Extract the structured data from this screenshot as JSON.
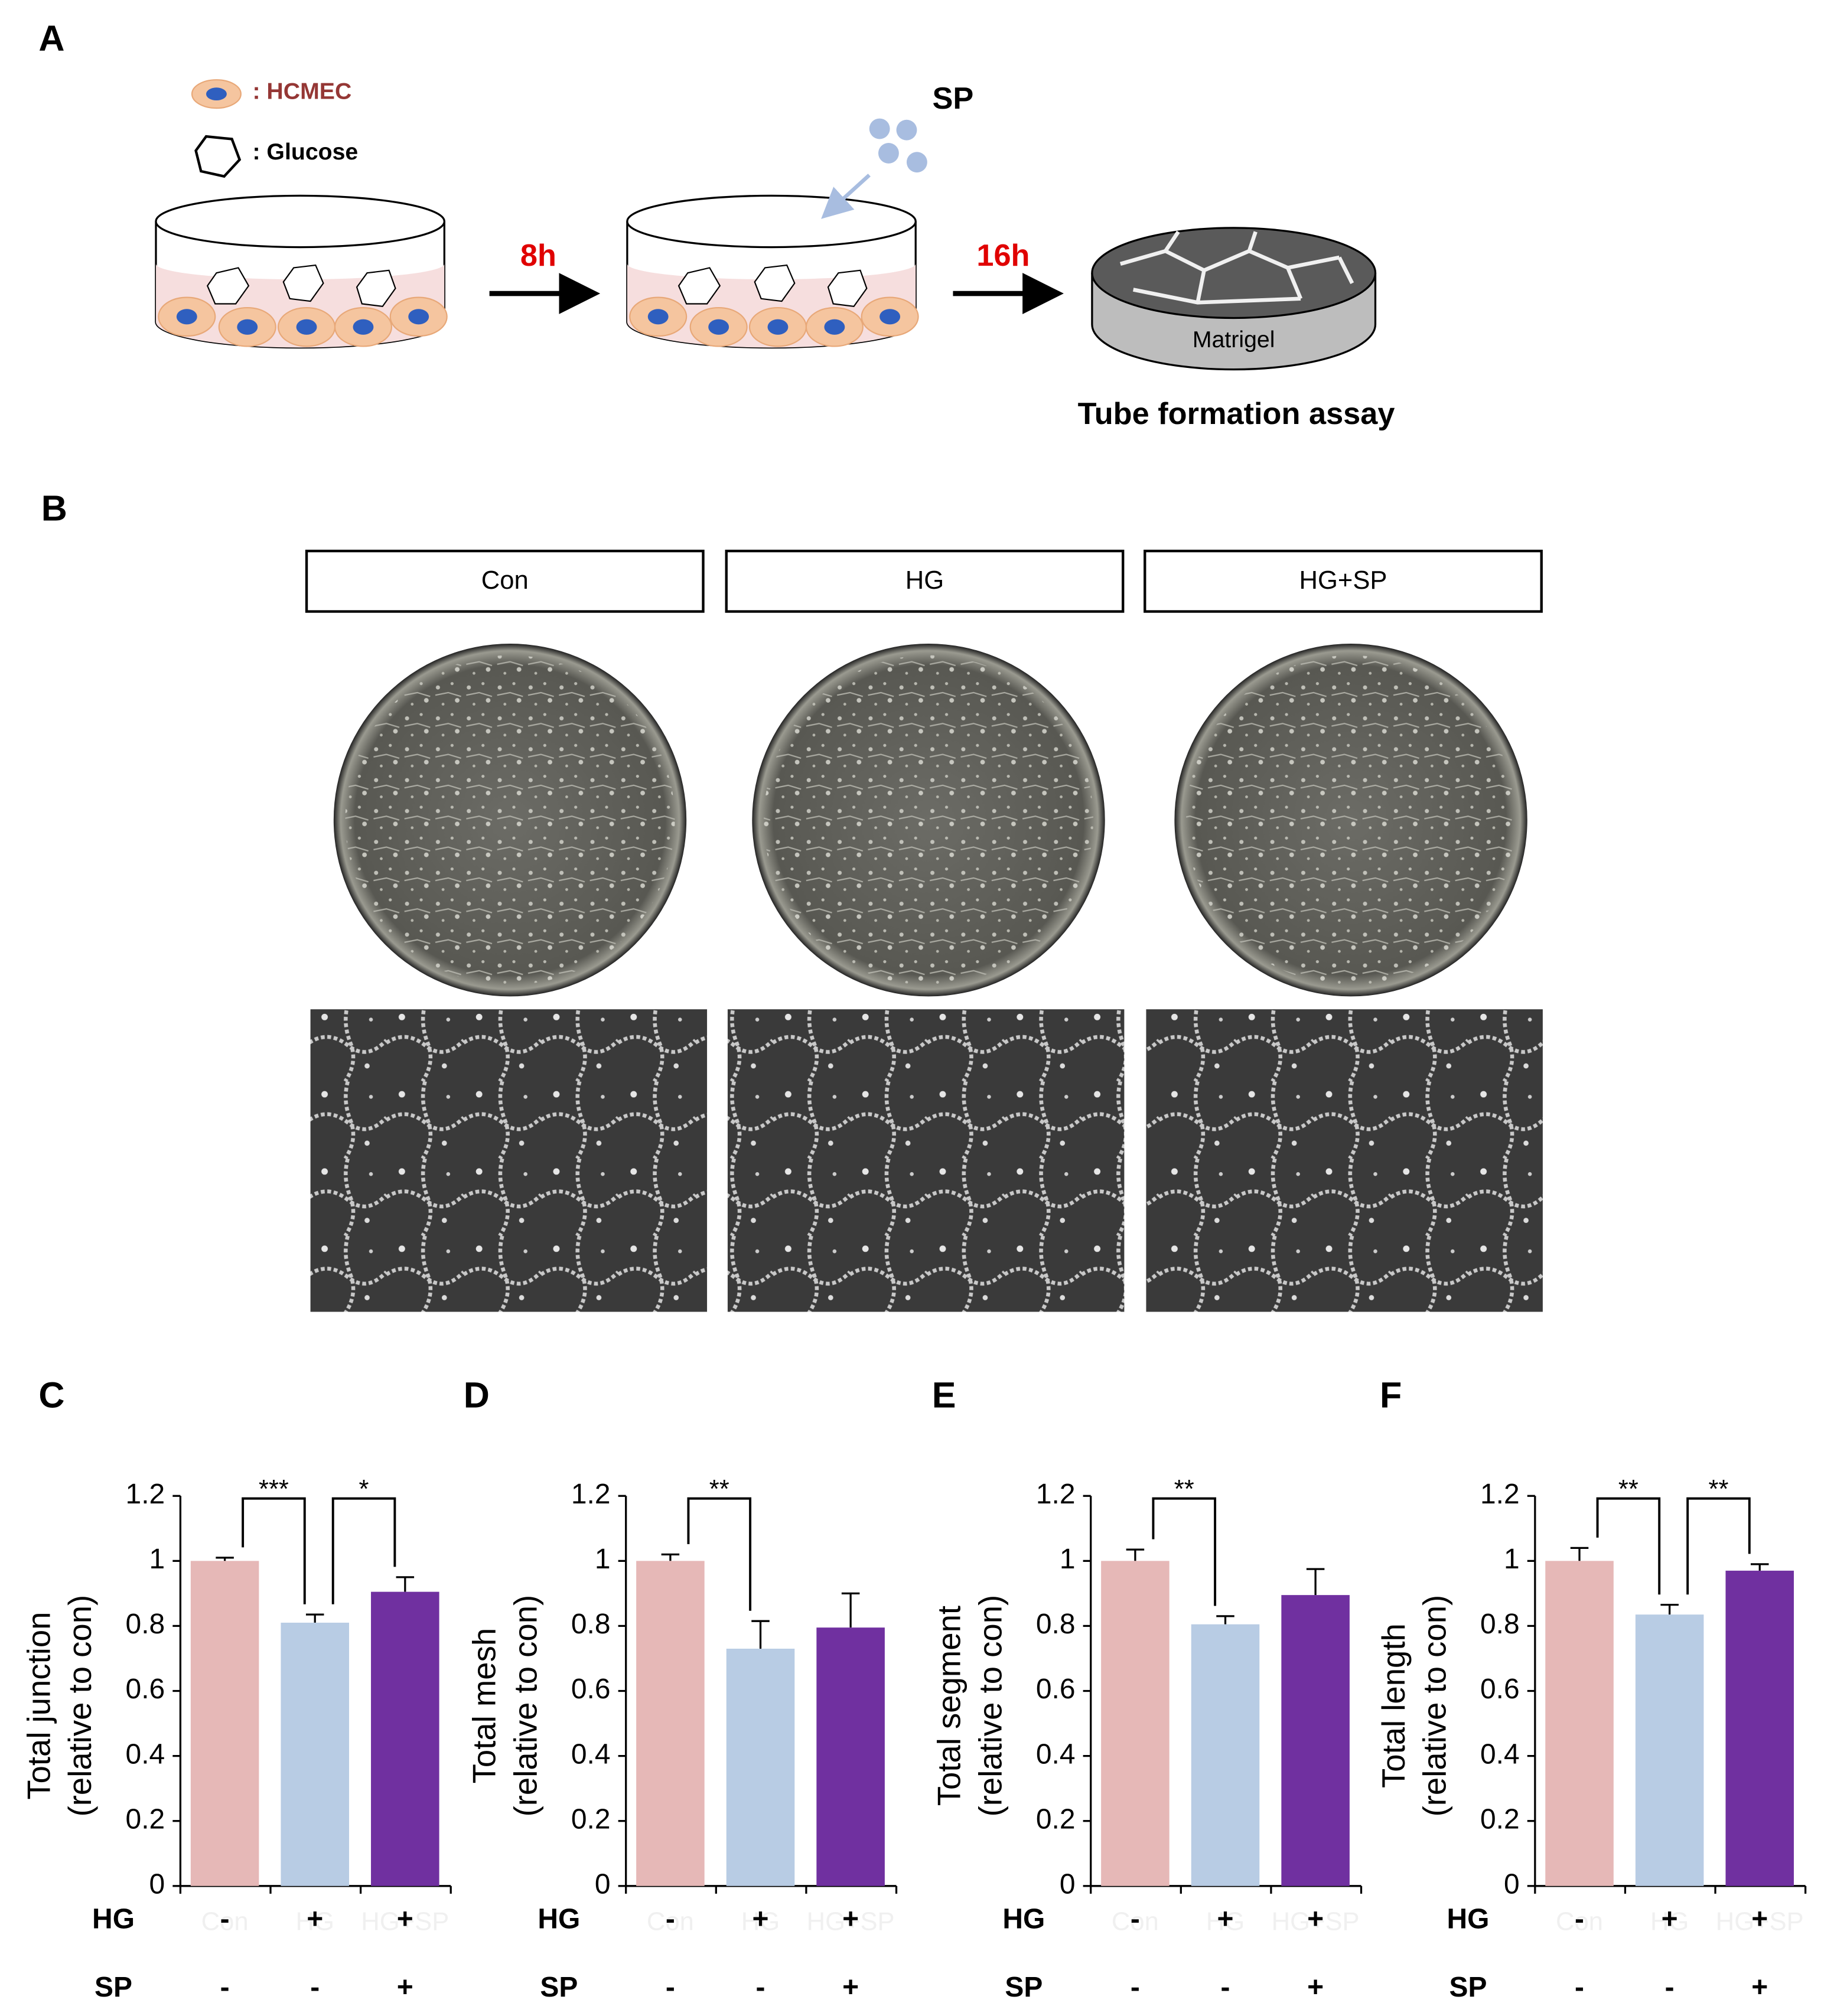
{
  "panel_a": {
    "label": "A",
    "legend_cell": ": HCMEC",
    "legend_glucose": ": Glucose",
    "treatment": "SP",
    "step1": "8h",
    "step2": "16h",
    "matrigel": "Matrigel",
    "assay": "Tube formation assay"
  },
  "panel_b": {
    "label": "B",
    "groups": [
      "Con",
      "HG",
      "HG+SP"
    ]
  },
  "chart_data": [
    {
      "type": "bar",
      "panel": "C",
      "ylabel": "Total junction",
      "ylabel_sub": "(relative to con)",
      "categories": [
        "Con",
        "HG",
        "HG+SP"
      ],
      "values": [
        1.0,
        0.81,
        0.905
      ],
      "errors": [
        0.01,
        0.025,
        0.045
      ],
      "colors": [
        "#e6b8b7",
        "#b8cce4",
        "#7030a0"
      ],
      "ylim": [
        0,
        1.2
      ],
      "yticks": [
        0,
        0.2,
        0.4,
        0.6,
        0.8,
        1,
        1.2
      ],
      "row_labels": [
        "HG",
        "SP"
      ],
      "conditions": [
        [
          "-",
          "+",
          "+"
        ],
        [
          "-",
          "-",
          "+"
        ]
      ],
      "significance": [
        {
          "between": [
            "Con",
            "HG"
          ],
          "text": "***"
        },
        {
          "between": [
            "HG",
            "HG+SP"
          ],
          "text": "*"
        }
      ]
    },
    {
      "type": "bar",
      "panel": "D",
      "ylabel": "Total mesh",
      "ylabel_sub": "(relative to con)",
      "categories": [
        "Con",
        "HG",
        "HG+SP"
      ],
      "values": [
        1.0,
        0.73,
        0.795
      ],
      "errors": [
        0.02,
        0.085,
        0.105
      ],
      "colors": [
        "#e6b8b7",
        "#b8cce4",
        "#7030a0"
      ],
      "ylim": [
        0,
        1.2
      ],
      "yticks": [
        0,
        0.2,
        0.4,
        0.6,
        0.8,
        1,
        1.2
      ],
      "row_labels": [
        "HG",
        "SP"
      ],
      "conditions": [
        [
          "-",
          "+",
          "+"
        ],
        [
          "-",
          "-",
          "+"
        ]
      ],
      "significance": [
        {
          "between": [
            "Con",
            "HG"
          ],
          "text": "**"
        }
      ]
    },
    {
      "type": "bar",
      "panel": "E",
      "ylabel": "Total segment",
      "ylabel_sub": "(relative to con)",
      "categories": [
        "Con",
        "HG",
        "HG+SP"
      ],
      "values": [
        1.0,
        0.805,
        0.895
      ],
      "errors": [
        0.035,
        0.025,
        0.08
      ],
      "colors": [
        "#e6b8b7",
        "#b8cce4",
        "#7030a0"
      ],
      "ylim": [
        0,
        1.2
      ],
      "yticks": [
        0,
        0.2,
        0.4,
        0.6,
        0.8,
        1,
        1.2
      ],
      "row_labels": [
        "HG",
        "SP"
      ],
      "conditions": [
        [
          "-",
          "+",
          "+"
        ],
        [
          "-",
          "-",
          "+"
        ]
      ],
      "significance": [
        {
          "between": [
            "Con",
            "HG"
          ],
          "text": "**"
        }
      ]
    },
    {
      "type": "bar",
      "panel": "F",
      "ylabel": "Total length",
      "ylabel_sub": "(relative to con)",
      "categories": [
        "Con",
        "HG",
        "HG+SP"
      ],
      "values": [
        1.0,
        0.835,
        0.97
      ],
      "errors": [
        0.04,
        0.03,
        0.02
      ],
      "colors": [
        "#e6b8b7",
        "#b8cce4",
        "#7030a0"
      ],
      "ylim": [
        0,
        1.2
      ],
      "yticks": [
        0,
        0.2,
        0.4,
        0.6,
        0.8,
        1,
        1.2
      ],
      "row_labels": [
        "HG",
        "SP"
      ],
      "conditions": [
        [
          "-",
          "+",
          "+"
        ],
        [
          "-",
          "-",
          "+"
        ]
      ],
      "significance": [
        {
          "between": [
            "Con",
            "HG"
          ],
          "text": "**"
        },
        {
          "between": [
            "HG",
            "HG+SP"
          ],
          "text": "**"
        }
      ]
    }
  ]
}
